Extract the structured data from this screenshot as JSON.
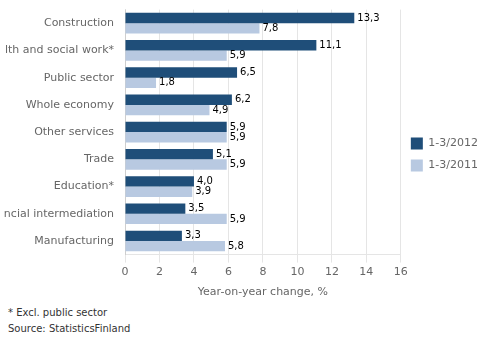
{
  "chart_data": {
    "type": "bar",
    "orientation": "horizontal",
    "categories": [
      "Manufacturing",
      "Financial intermediation",
      "Education*",
      "Trade",
      "Other services",
      "Whole economy",
      "Public sector",
      "Health and social work*",
      "Construction"
    ],
    "series": [
      {
        "name": "1-3/2012",
        "color": "#1F4E79",
        "values": [
          3.3,
          3.5,
          4.0,
          5.1,
          5.9,
          6.2,
          6.5,
          11.1,
          13.3
        ],
        "value_labels": [
          "3,3",
          "3,5",
          "4,0",
          "5,1",
          "5,9",
          "6,2",
          "6,5",
          "11,1",
          "13,3"
        ]
      },
      {
        "name": "1-3/2011",
        "color": "#B8C9E1",
        "values": [
          5.8,
          5.9,
          3.9,
          5.9,
          5.9,
          4.9,
          1.8,
          5.9,
          7.8
        ],
        "value_labels": [
          "5,8",
          "5,9",
          "3,9",
          "5,9",
          "5,9",
          "4,9",
          "1,8",
          "5,9",
          "7,8"
        ]
      }
    ],
    "xlabel": "Year-on-year change, %",
    "xlim": [
      0,
      16
    ],
    "xticks": [
      0,
      2,
      4,
      6,
      8,
      10,
      12,
      14,
      16
    ],
    "grid": true,
    "legend": "right",
    "data_labels": true,
    "annotations": [
      "* Excl. public sector",
      "Source: StatisticsFinland"
    ]
  }
}
